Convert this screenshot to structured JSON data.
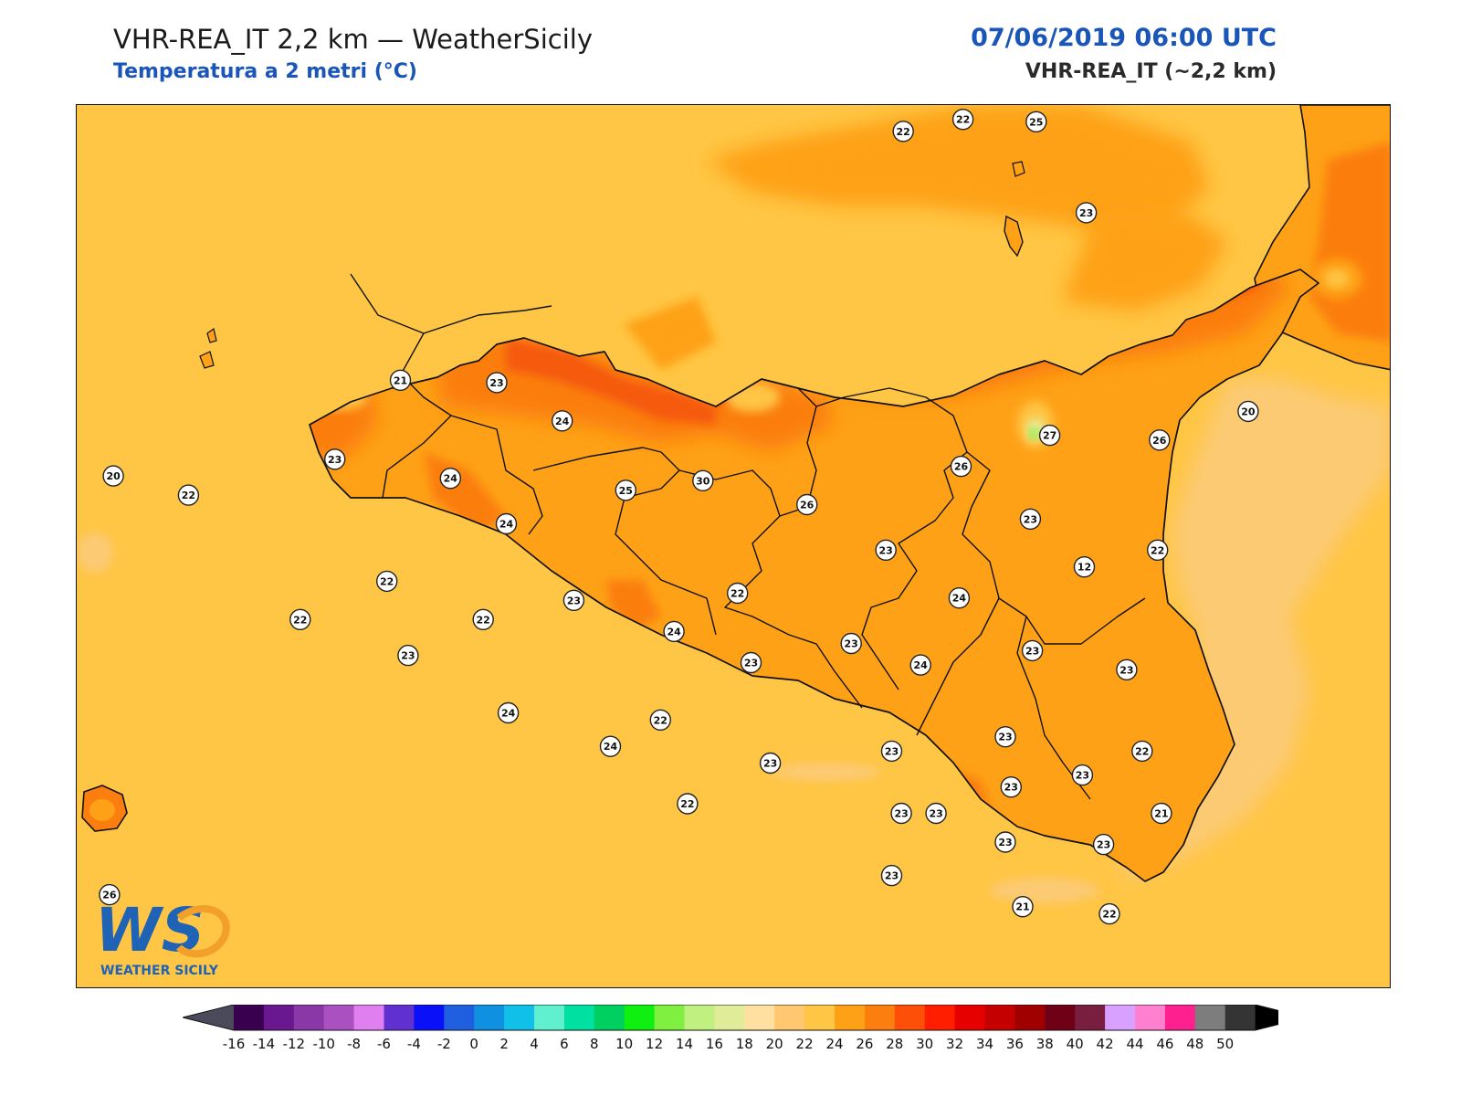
{
  "header": {
    "title": "VHR-REA_IT 2,2 km — WeatherSicily",
    "subtitle": "Temperatura a 2 metri (°C)",
    "datetime": "07/06/2019 06:00 UTC",
    "model": "VHR-REA_IT (~2,2 km)"
  },
  "logo": {
    "text": "WS",
    "caption": "WEATHER SICILY"
  },
  "colors": {
    "sea": "#ffc544",
    "sea_light": "#fcca73",
    "land_base": "#fea117",
    "land_warm": "#fb7e0e",
    "land_hot": "#f55a10",
    "logo_blue": "#1e63b6",
    "logo_orange": "#f2a02a"
  },
  "stations": [
    {
      "v": "22",
      "lat": 39.24,
      "lon": 15.34
    },
    {
      "v": "22",
      "lat": 39.29,
      "lon": 15.65
    },
    {
      "v": "25",
      "lat": 39.28,
      "lon": 16.03
    },
    {
      "v": "23",
      "lat": 38.9,
      "lon": 16.29
    },
    {
      "v": "21",
      "lat": 38.2,
      "lon": 12.73
    },
    {
      "v": "23",
      "lat": 38.19,
      "lon": 13.23
    },
    {
      "v": "24",
      "lat": 38.03,
      "lon": 13.57
    },
    {
      "v": "20",
      "lat": 38.07,
      "lon": 17.13
    },
    {
      "v": "27",
      "lat": 37.97,
      "lon": 16.1
    },
    {
      "v": "26",
      "lat": 37.95,
      "lon": 16.67
    },
    {
      "v": "23",
      "lat": 37.87,
      "lon": 12.39
    },
    {
      "v": "24",
      "lat": 37.79,
      "lon": 12.99
    },
    {
      "v": "20",
      "lat": 37.8,
      "lon": 11.24
    },
    {
      "v": "22",
      "lat": 37.72,
      "lon": 11.63
    },
    {
      "v": "25",
      "lat": 37.74,
      "lon": 13.9
    },
    {
      "v": "30",
      "lat": 37.78,
      "lon": 14.3
    },
    {
      "v": "26",
      "lat": 37.84,
      "lon": 15.64
    },
    {
      "v": "26",
      "lat": 37.68,
      "lon": 14.84
    },
    {
      "v": "24",
      "lat": 37.6,
      "lon": 13.28
    },
    {
      "v": "23",
      "lat": 37.62,
      "lon": 16.0
    },
    {
      "v": "23",
      "lat": 37.49,
      "lon": 15.25
    },
    {
      "v": "22",
      "lat": 37.49,
      "lon": 16.66
    },
    {
      "v": "12",
      "lat": 37.42,
      "lon": 16.28
    },
    {
      "v": "22",
      "lat": 37.36,
      "lon": 12.66
    },
    {
      "v": "22",
      "lat": 37.31,
      "lon": 14.48
    },
    {
      "v": "23",
      "lat": 37.28,
      "lon": 13.63
    },
    {
      "v": "24",
      "lat": 37.29,
      "lon": 15.63
    },
    {
      "v": "22",
      "lat": 37.2,
      "lon": 12.21
    },
    {
      "v": "22",
      "lat": 37.2,
      "lon": 13.16
    },
    {
      "v": "24",
      "lat": 37.15,
      "lon": 14.15
    },
    {
      "v": "23",
      "lat": 37.05,
      "lon": 12.77
    },
    {
      "v": "23",
      "lat": 37.1,
      "lon": 15.07
    },
    {
      "v": "23",
      "lat": 37.07,
      "lon": 16.01
    },
    {
      "v": "23",
      "lat": 37.02,
      "lon": 14.55
    },
    {
      "v": "24",
      "lat": 37.01,
      "lon": 15.43
    },
    {
      "v": "23",
      "lat": 36.99,
      "lon": 16.5
    },
    {
      "v": "24",
      "lat": 36.81,
      "lon": 13.29
    },
    {
      "v": "22",
      "lat": 36.78,
      "lon": 14.08
    },
    {
      "v": "23",
      "lat": 36.71,
      "lon": 15.87
    },
    {
      "v": "24",
      "lat": 36.67,
      "lon": 13.82
    },
    {
      "v": "23",
      "lat": 36.65,
      "lon": 15.28
    },
    {
      "v": "22",
      "lat": 36.65,
      "lon": 16.58
    },
    {
      "v": "23",
      "lat": 36.6,
      "lon": 14.65
    },
    {
      "v": "23",
      "lat": 36.55,
      "lon": 16.27
    },
    {
      "v": "23",
      "lat": 36.5,
      "lon": 15.9
    },
    {
      "v": "22",
      "lat": 36.43,
      "lon": 14.22
    },
    {
      "v": "23",
      "lat": 36.39,
      "lon": 15.33
    },
    {
      "v": "23",
      "lat": 36.39,
      "lon": 15.51
    },
    {
      "v": "21",
      "lat": 36.39,
      "lon": 16.68
    },
    {
      "v": "23",
      "lat": 36.27,
      "lon": 15.87
    },
    {
      "v": "23",
      "lat": 36.26,
      "lon": 16.38
    },
    {
      "v": "23",
      "lat": 36.13,
      "lon": 15.28
    },
    {
      "v": "26",
      "lat": 36.05,
      "lon": 11.22
    },
    {
      "v": "21",
      "lat": 36.0,
      "lon": 15.96
    },
    {
      "v": "22",
      "lat": 35.97,
      "lon": 16.41
    }
  ],
  "colorbar": {
    "labels": [
      "-16",
      "-14",
      "-12",
      "-10",
      "-8",
      "-6",
      "-4",
      "-2",
      "0",
      "2",
      "4",
      "6",
      "8",
      "10",
      "12",
      "14",
      "16",
      "18",
      "20",
      "22",
      "24",
      "26",
      "28",
      "30",
      "32",
      "34",
      "36",
      "38",
      "40",
      "42",
      "44",
      "46",
      "48",
      "50"
    ],
    "colors": [
      "#3a0050",
      "#6a1890",
      "#8a38a8",
      "#aa50c0",
      "#e080f0",
      "#6030d0",
      "#0a10f8",
      "#2060e0",
      "#1090e0",
      "#10c0e8",
      "#60f0d0",
      "#00e0a0",
      "#00d060",
      "#10f010",
      "#80f040",
      "#c0f080",
      "#e0ec98",
      "#ffe0a0",
      "#ffc870",
      "#ffc544",
      "#fea117",
      "#fb7e0e",
      "#fd4f08",
      "#ff1e00",
      "#e70000",
      "#c50000",
      "#a00000",
      "#700015",
      "#7a1e40",
      "#d8a0ff",
      "#ff80d0",
      "#ff2090",
      "#7d7d7d",
      "#343434"
    ]
  }
}
